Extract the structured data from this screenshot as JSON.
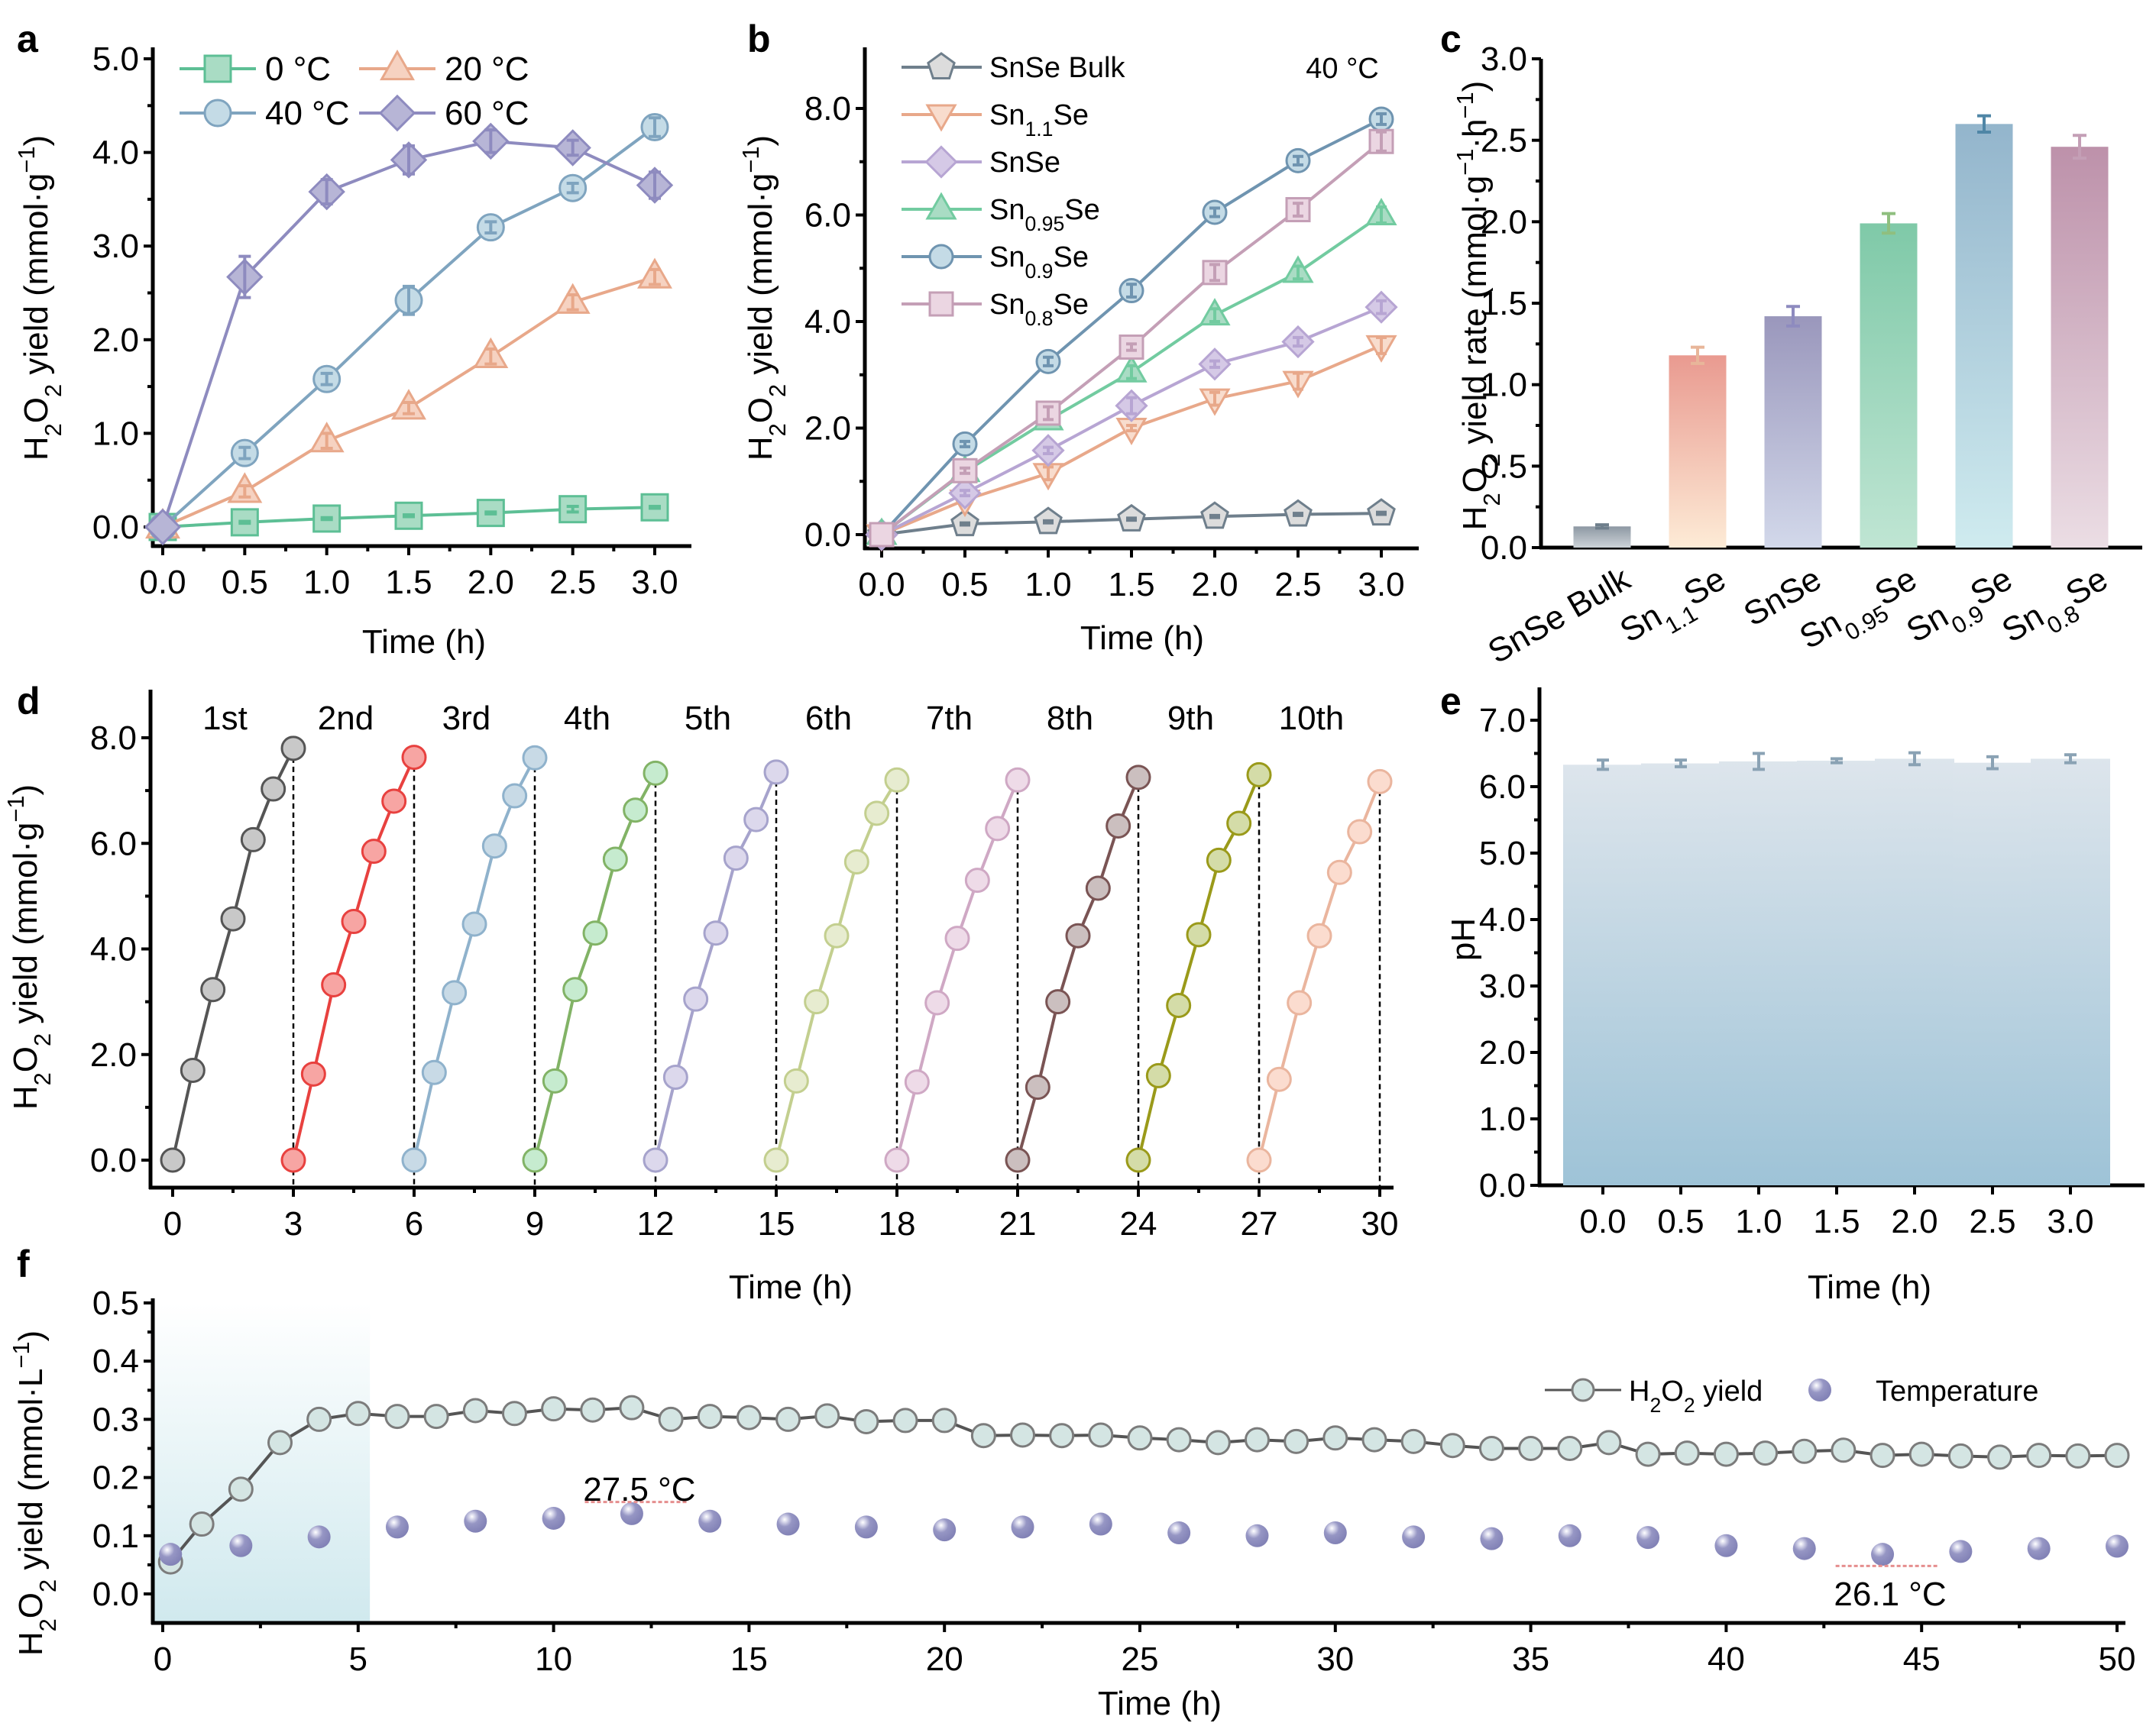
{
  "figure": {
    "panels": [
      "a",
      "b",
      "c",
      "d",
      "e",
      "f"
    ]
  },
  "chart_data": [
    {
      "id": "a",
      "panel_label": "a",
      "type": "line",
      "xlabel": "Time (h)",
      "ylabel": "H2O2 yield (mmol·g⁻¹)",
      "ylabel_parts": [
        "H",
        "2",
        "O",
        "2",
        " yield (mmol·g",
        "−1",
        ")"
      ],
      "xlim": [
        0,
        3
      ],
      "ylim": [
        0,
        5
      ],
      "xticks": [
        "0.0",
        "0.5",
        "1.0",
        "1.5",
        "2.0",
        "2.5",
        "3.0"
      ],
      "yticks": [
        "0.0",
        "1.0",
        "2.0",
        "3.0",
        "4.0",
        "5.0"
      ],
      "legend_position": "top-left",
      "x": [
        0,
        0.5,
        1.0,
        1.5,
        2.0,
        2.5,
        3.0
      ],
      "series": [
        {
          "name": "0 °C",
          "marker": "square",
          "color": "#5dbf95",
          "fill": "#a9dcc4",
          "values": [
            0,
            0.05,
            0.09,
            0.12,
            0.15,
            0.19,
            0.21
          ],
          "errors": [
            0,
            0.01,
            0.01,
            0.01,
            0.01,
            0.03,
            0.01
          ]
        },
        {
          "name": "20 °C",
          "marker": "triangle-up",
          "color": "#e8a88a",
          "fill": "#f6d2c1",
          "values": [
            0,
            0.38,
            0.92,
            1.27,
            1.82,
            2.4,
            2.67
          ],
          "errors": [
            0,
            0.06,
            0.08,
            0.06,
            0.08,
            0.08,
            0.08
          ]
        },
        {
          "name": "40 °C",
          "marker": "circle",
          "color": "#7fa4bf",
          "fill": "#c4dbe6",
          "values": [
            0,
            0.79,
            1.58,
            2.42,
            3.2,
            3.62,
            4.27
          ],
          "errors": [
            0,
            0.06,
            0.06,
            0.15,
            0.06,
            0.05,
            0.1
          ]
        },
        {
          "name": "60 °C",
          "marker": "diamond",
          "color": "#8e8bbf",
          "fill": "#b7b5d6",
          "values": [
            0,
            2.67,
            3.58,
            3.92,
            4.12,
            4.05,
            3.65
          ],
          "errors": [
            0,
            0.22,
            0.13,
            0.15,
            0.12,
            0.08,
            0.14
          ]
        }
      ]
    },
    {
      "id": "b",
      "panel_label": "b",
      "type": "line",
      "annotation": "40 °C",
      "xlabel": "Time (h)",
      "ylabel_parts": [
        "H",
        "2",
        "O",
        "2",
        " yield (mmol·g",
        "−1",
        ")"
      ],
      "xlim": [
        0,
        3
      ],
      "ylim": [
        0,
        8.8
      ],
      "xticks": [
        "0.0",
        "0.5",
        "1.0",
        "1.5",
        "2.0",
        "2.5",
        "3.0"
      ],
      "yticks": [
        "0.0",
        "2.0",
        "4.0",
        "6.0",
        "8.0"
      ],
      "legend_position": "top-left",
      "x": [
        0,
        0.5,
        1.0,
        1.5,
        2.0,
        2.5,
        3.0
      ],
      "series": [
        {
          "name": "SnSe Bulk",
          "name_parts": [
            "SnSe Bulk",
            "",
            ""
          ],
          "marker": "pentagon",
          "color": "#6f7f8c",
          "fill": "#dcdcdc",
          "values": [
            0,
            0.2,
            0.24,
            0.29,
            0.34,
            0.38,
            0.4
          ],
          "errors": [
            0,
            0.02,
            0.02,
            0.02,
            0.02,
            0.02,
            0.02
          ]
        },
        {
          "name": "Sn1.1Se",
          "name_parts": [
            "Sn",
            "1.1",
            "Se"
          ],
          "marker": "triangle-down",
          "color": "#e8a88a",
          "fill": "#f8dccd",
          "values": [
            0,
            0.65,
            1.15,
            2.0,
            2.55,
            2.88,
            3.55
          ],
          "errors": [
            0,
            0.05,
            0.12,
            0.05,
            0.12,
            0.15,
            0.15
          ]
        },
        {
          "name": "SnSe",
          "name_parts": [
            "SnSe",
            "",
            ""
          ],
          "marker": "diamond",
          "color": "#b7a5d3",
          "fill": "#d5c9e6",
          "values": [
            0,
            0.78,
            1.58,
            2.42,
            3.2,
            3.62,
            4.27
          ],
          "errors": [
            0,
            0.05,
            0.06,
            0.15,
            0.06,
            0.08,
            0.12
          ]
        },
        {
          "name": "Sn0.95Se",
          "name_parts": [
            "Sn",
            "0.95",
            "Se"
          ],
          "marker": "triangle-up",
          "color": "#72cba0",
          "fill": "#a9dcc4",
          "values": [
            0,
            1.18,
            2.15,
            3.05,
            4.12,
            4.92,
            6.0
          ],
          "errors": [
            0,
            0.05,
            0.06,
            0.12,
            0.12,
            0.12,
            0.15
          ]
        },
        {
          "name": "Sn0.9Se",
          "name_parts": [
            "Sn",
            "0.9",
            "Se"
          ],
          "marker": "circle",
          "color": "#6f94b0",
          "fill": "#c4dbe6",
          "values": [
            0,
            1.7,
            3.25,
            4.58,
            6.05,
            7.02,
            7.8
          ],
          "errors": [
            0,
            0.05,
            0.08,
            0.12,
            0.08,
            0.08,
            0.1
          ]
        },
        {
          "name": "Sn0.8Se",
          "name_parts": [
            "Sn",
            "0.8",
            "Se"
          ],
          "marker": "square",
          "color": "#c49fb6",
          "fill": "#ebd6e2",
          "values": [
            0,
            1.2,
            2.28,
            3.52,
            4.92,
            6.1,
            7.38
          ],
          "errors": [
            0,
            0.05,
            0.12,
            0.06,
            0.15,
            0.12,
            0.18
          ]
        }
      ]
    },
    {
      "id": "c",
      "panel_label": "c",
      "type": "bar",
      "ylabel": "H2O2 yield rate (mmol·g⁻¹·h⁻¹)",
      "ylabel_parts": [
        "H",
        "2",
        "O",
        "2",
        " yield rate (mmol·g",
        "−1",
        "·h",
        "−1",
        ")"
      ],
      "ylim": [
        0,
        3.0
      ],
      "yticks": [
        "0.0",
        "0.5",
        "1.0",
        "1.5",
        "2.0",
        "2.5",
        "3.0"
      ],
      "categories": [
        "SnSe Bulk",
        "Sn1.1Se",
        "SnSe",
        "Sn0.95Se",
        "Sn0.9Se",
        "Sn0.8Se"
      ],
      "category_parts": [
        [
          "SnSe Bulk",
          "",
          ""
        ],
        [
          "Sn",
          "1.1",
          "Se"
        ],
        [
          "SnSe",
          "",
          ""
        ],
        [
          "Sn",
          "0.95",
          "Se"
        ],
        [
          "Sn",
          "0.9",
          "Se"
        ],
        [
          "Sn",
          "0.8",
          "Se"
        ]
      ],
      "values": [
        0.13,
        1.18,
        1.42,
        1.99,
        2.6,
        2.46
      ],
      "errors": [
        0.01,
        0.05,
        0.06,
        0.06,
        0.05,
        0.07
      ],
      "bar_colors_top": [
        "#8d98a3",
        "#e99a90",
        "#9a97bc",
        "#7fc9a8",
        "#93b5cc",
        "#bd91aa"
      ],
      "bar_colors_bottom": [
        "#cdd3d8",
        "#fdebd6",
        "#d2d8ea",
        "#bfe5d3",
        "#cfebef",
        "#ebdde4"
      ],
      "error_colors": [
        "#6f7f8c",
        "#e8b69a",
        "#8e8bbf",
        "#8fbf7f",
        "#4f86a6",
        "#c49fb6"
      ]
    },
    {
      "id": "d",
      "panel_label": "d",
      "type": "line",
      "xlabel": "Time (h)",
      "ylabel_parts": [
        "H",
        "2",
        "O",
        "2",
        " yield (mmol·g",
        "−1",
        ")"
      ],
      "xlim": [
        -0.5,
        30.8
      ],
      "ylim": [
        -0.4,
        8.8
      ],
      "xticks": [
        "0",
        "3",
        "6",
        "9",
        "12",
        "15",
        "18",
        "21",
        "24",
        "27",
        "30"
      ],
      "yticks": [
        "0.0",
        "2.0",
        "4.0",
        "6.0",
        "8.0"
      ],
      "cycle_separators": [
        3,
        6,
        9,
        12,
        15,
        18,
        21,
        24,
        27,
        30
      ],
      "cycle_step_h": 0.5,
      "series": [
        {
          "name": "1st",
          "start": 0,
          "color": "#555555",
          "fill": "#c8c8c8",
          "values": [
            0,
            1.7,
            3.23,
            4.57,
            6.07,
            7.03,
            7.8
          ]
        },
        {
          "name": "2nd",
          "start": 3,
          "color": "#e8413f",
          "fill": "#f7a5a3",
          "values": [
            0,
            1.63,
            3.32,
            4.52,
            5.85,
            6.8,
            7.63
          ]
        },
        {
          "name": "3rd",
          "start": 6,
          "color": "#8fb2cc",
          "fill": "#c8dae6",
          "values": [
            0,
            1.66,
            3.17,
            4.47,
            5.95,
            6.9,
            7.62
          ]
        },
        {
          "name": "4th",
          "start": 9,
          "color": "#82b366",
          "fill": "#c6ebcf",
          "values": [
            0,
            1.5,
            3.23,
            4.3,
            5.7,
            6.63,
            7.33
          ]
        },
        {
          "name": "5th",
          "start": 12,
          "color": "#a6a3cc",
          "fill": "#dcd8ec",
          "values": [
            0,
            1.57,
            3.05,
            4.3,
            5.72,
            6.45,
            7.35
          ]
        },
        {
          "name": "6th",
          "start": 15,
          "color": "#c3cf8f",
          "fill": "#e7ecd0",
          "values": [
            0,
            1.5,
            3.0,
            4.25,
            5.65,
            6.57,
            7.2
          ]
        },
        {
          "name": "7th",
          "start": 18,
          "color": "#cfa8c4",
          "fill": "#eedbe8",
          "values": [
            0,
            1.48,
            2.98,
            4.2,
            5.3,
            6.28,
            7.2
          ]
        },
        {
          "name": "8th",
          "start": 21,
          "color": "#7a5454",
          "fill": "#cbbfbf",
          "values": [
            0,
            1.38,
            3.0,
            4.25,
            5.15,
            6.33,
            7.25
          ]
        },
        {
          "name": "9th",
          "start": 24,
          "color": "#9a9a1a",
          "fill": "#d4dca8",
          "values": [
            0,
            1.6,
            2.93,
            4.27,
            5.68,
            6.38,
            7.3
          ]
        },
        {
          "name": "10th",
          "start": 27,
          "color": "#eab59e",
          "fill": "#fbdccf",
          "values": [
            0,
            1.53,
            2.98,
            4.25,
            5.45,
            6.22,
            7.17
          ]
        }
      ]
    },
    {
      "id": "e",
      "panel_label": "e",
      "type": "bar",
      "xlabel": "Time (h)",
      "ylabel": "pH",
      "ylim": [
        0,
        7.5
      ],
      "yticks": [
        "0.0",
        "1.0",
        "2.0",
        "3.0",
        "4.0",
        "5.0",
        "6.0",
        "7.0"
      ],
      "categories": [
        "0.0",
        "0.5",
        "1.0",
        "1.5",
        "2.0",
        "2.5",
        "3.0"
      ],
      "values": [
        6.33,
        6.35,
        6.38,
        6.39,
        6.42,
        6.36,
        6.42
      ],
      "errors": [
        0.07,
        0.05,
        0.12,
        0.03,
        0.09,
        0.09,
        0.06
      ],
      "bar_color_top": "#dde5ec",
      "bar_color_bottom": "#9ec3d7",
      "error_color": "#8aa2b4"
    },
    {
      "id": "f",
      "panel_label": "f",
      "type": "scatter",
      "xlabel": "Time (h)",
      "ylabel_parts": [
        "H",
        "2",
        "O",
        "2",
        " yield (mmol·L",
        "−1",
        ")"
      ],
      "xlim": [
        -0.4,
        50.4
      ],
      "ylim": [
        -0.05,
        0.5
      ],
      "xticks": [
        "0",
        "5",
        "10",
        "15",
        "20",
        "25",
        "30",
        "35",
        "40",
        "45",
        "50"
      ],
      "yticks": [
        "0.0",
        "0.1",
        "0.2",
        "0.3",
        "0.4",
        "0.5"
      ],
      "shaded_region_x": [
        -0.4,
        5.3
      ],
      "legend_position": "right",
      "legend": [
        {
          "label_parts": [
            "H",
            "2",
            "O",
            "2",
            " yield"
          ],
          "marker": "circle-line"
        },
        {
          "label": "Temperature",
          "marker": "sphere"
        }
      ],
      "annotations": [
        {
          "text": "27.5 °C",
          "x": 12,
          "line_x": [
            10.8,
            13.4
          ],
          "line_y": 0.158,
          "text_y": 0.18
        },
        {
          "text": "26.1 °C",
          "x": 44,
          "line_x": [
            42.8,
            45.4
          ],
          "line_y": 0.048,
          "text_y": 0.0
        }
      ],
      "series": [
        {
          "name": "H2O2 yield",
          "color": "#555555",
          "fill": "#d4e5e3",
          "x": [
            0.2,
            1,
            2,
            3,
            4,
            5,
            6,
            7,
            8,
            9,
            10,
            11,
            12,
            13,
            14,
            15,
            16,
            17,
            18,
            19,
            20,
            21,
            22,
            23,
            24,
            25,
            26,
            27,
            28,
            29,
            30,
            31,
            32,
            33,
            34,
            35,
            36,
            37,
            38,
            39,
            40,
            41,
            42,
            43,
            44,
            45,
            46,
            47,
            48,
            49,
            50
          ],
          "values": [
            0.055,
            0.12,
            0.18,
            0.26,
            0.3,
            0.31,
            0.305,
            0.305,
            0.315,
            0.31,
            0.318,
            0.316,
            0.32,
            0.3,
            0.305,
            0.303,
            0.3,
            0.306,
            0.296,
            0.298,
            0.298,
            0.272,
            0.273,
            0.272,
            0.273,
            0.268,
            0.265,
            0.26,
            0.265,
            0.262,
            0.268,
            0.265,
            0.262,
            0.255,
            0.25,
            0.25,
            0.25,
            0.26,
            0.24,
            0.242,
            0.24,
            0.242,
            0.245,
            0.247,
            0.238,
            0.24,
            0.237,
            0.235,
            0.238,
            0.237,
            0.238
          ]
        },
        {
          "name": "Temperature",
          "color": "#8f8fbf",
          "x": [
            0.2,
            2,
            4,
            6,
            8,
            10,
            12,
            14,
            16,
            18,
            20,
            22,
            24,
            26,
            28,
            30,
            32,
            34,
            36,
            38,
            40,
            42,
            44,
            46,
            48,
            50
          ],
          "values": [
            0.068,
            0.083,
            0.098,
            0.115,
            0.125,
            0.13,
            0.138,
            0.125,
            0.12,
            0.115,
            0.11,
            0.115,
            0.12,
            0.105,
            0.1,
            0.105,
            0.098,
            0.095,
            0.1,
            0.097,
            0.083,
            0.078,
            0.068,
            0.073,
            0.078,
            0.082
          ]
        }
      ]
    }
  ]
}
